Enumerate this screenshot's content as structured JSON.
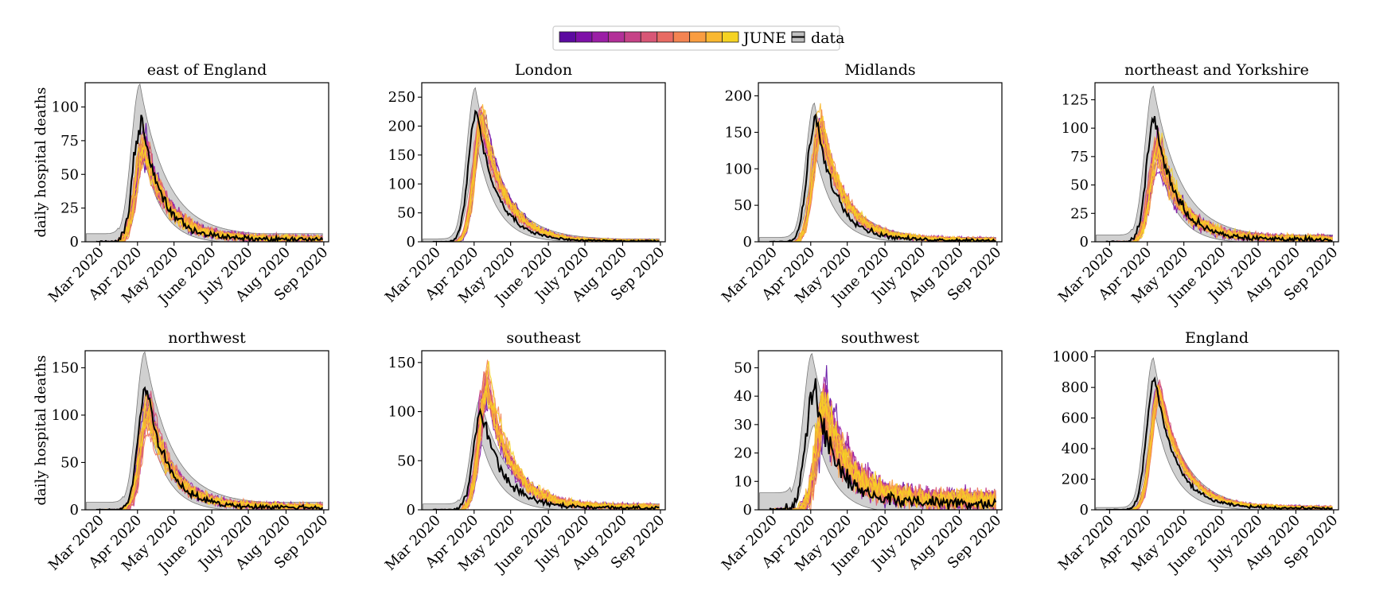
{
  "legend": {
    "model_label": "JUNE",
    "data_label": "data",
    "model_colors": [
      "#5c0aa0",
      "#7e10a8",
      "#9b1ea6",
      "#b22f98",
      "#c64287",
      "#d85676",
      "#e86a63",
      "#f38452",
      "#f99d40",
      "#f9b830",
      "#f5d323"
    ]
  },
  "chart_data": [
    {
      "type": "line",
      "title": "east of England",
      "ylabel": "daily hospital deaths",
      "x_ticks": [
        "Mar 2020",
        "Apr 2020",
        "May 2020",
        "June 2020",
        "July 2020",
        "Aug 2020",
        "Sep 2020"
      ],
      "y_ticks": [
        0,
        25,
        50,
        75,
        100
      ],
      "ylim": [
        0,
        118
      ],
      "peak_day": 34,
      "data_peak": 88,
      "band_peak": 112,
      "band_floor": 6,
      "model_peak": 72,
      "model_spread": 18,
      "model_shift": 2,
      "tail": 4
    },
    {
      "type": "line",
      "title": "London",
      "ylabel": "",
      "x_ticks": [
        "Mar 2020",
        "Apr 2020",
        "May 2020",
        "June 2020",
        "July 2020",
        "Aug 2020",
        "Sep 2020"
      ],
      "y_ticks": [
        0,
        50,
        100,
        150,
        200,
        250
      ],
      "ylim": [
        0,
        275
      ],
      "peak_day": 33,
      "data_peak": 225,
      "band_peak": 262,
      "band_floor": 5,
      "model_peak": 210,
      "model_spread": 35,
      "model_shift": 5,
      "tail": 3
    },
    {
      "type": "line",
      "title": "Midlands",
      "ylabel": "",
      "x_ticks": [
        "Mar 2020",
        "Apr 2020",
        "May 2020",
        "June 2020",
        "July 2020",
        "Aug 2020",
        "Sep 2020"
      ],
      "y_ticks": [
        0,
        50,
        100,
        150,
        200
      ],
      "ylim": [
        0,
        218
      ],
      "peak_day": 35,
      "data_peak": 170,
      "band_peak": 185,
      "band_floor": 6,
      "model_peak": 160,
      "model_spread": 28,
      "model_shift": 4,
      "tail": 5
    },
    {
      "type": "line",
      "title": "northeast and Yorkshire",
      "ylabel": "",
      "x_ticks": [
        "Mar 2020",
        "Apr 2020",
        "May 2020",
        "June 2020",
        "July 2020",
        "Aug 2020",
        "Sep 2020"
      ],
      "y_ticks": [
        0,
        25,
        50,
        75,
        100,
        125
      ],
      "ylim": [
        0,
        140
      ],
      "peak_day": 37,
      "data_peak": 108,
      "band_peak": 132,
      "band_floor": 6,
      "model_peak": 80,
      "model_spread": 22,
      "model_shift": 3,
      "tail": 5
    },
    {
      "type": "line",
      "title": "northwest",
      "ylabel": "daily hospital deaths",
      "x_ticks": [
        "Mar 2020",
        "Apr 2020",
        "May 2020",
        "June 2020",
        "July 2020",
        "Aug 2020",
        "Sep 2020"
      ],
      "y_ticks": [
        0,
        50,
        100,
        150
      ],
      "ylim": [
        0,
        168
      ],
      "peak_day": 38,
      "data_peak": 128,
      "band_peak": 160,
      "band_floor": 8,
      "model_peak": 105,
      "model_spread": 22,
      "model_shift": 2,
      "tail": 6
    },
    {
      "type": "line",
      "title": "southeast",
      "ylabel": "",
      "x_ticks": [
        "Mar 2020",
        "Apr 2020",
        "May 2020",
        "June 2020",
        "July 2020",
        "Aug 2020",
        "Sep 2020"
      ],
      "y_ticks": [
        0,
        50,
        100,
        150
      ],
      "ylim": [
        0,
        162
      ],
      "peak_day": 37,
      "data_peak": 100,
      "band_peak": 108,
      "band_floor": 6,
      "model_peak": 125,
      "model_spread": 28,
      "model_shift": 5,
      "tail": 5
    },
    {
      "type": "line",
      "title": "southwest",
      "ylabel": "",
      "x_ticks": [
        "Mar 2020",
        "Apr 2020",
        "May 2020",
        "June 2020",
        "July 2020",
        "Aug 2020",
        "Sep 2020"
      ],
      "y_ticks": [
        0,
        10,
        20,
        30,
        40,
        50
      ],
      "ylim": [
        0,
        56
      ],
      "peak_day": 33,
      "data_peak": 42,
      "band_peak": 50,
      "band_floor": 6,
      "model_peak": 32,
      "model_spread": 14,
      "model_shift": 9,
      "tail": 6
    },
    {
      "type": "line",
      "title": "England",
      "ylabel": "",
      "x_ticks": [
        "Mar 2020",
        "Apr 2020",
        "May 2020",
        "June 2020",
        "July 2020",
        "Aug 2020",
        "Sep 2020"
      ],
      "y_ticks": [
        0,
        200,
        400,
        600,
        800,
        1000
      ],
      "ylim": [
        0,
        1040
      ],
      "peak_day": 37,
      "data_peak": 860,
      "band_peak": 980,
      "band_floor": 15,
      "model_peak": 780,
      "model_spread": 60,
      "model_shift": 4,
      "tail": 25
    }
  ]
}
